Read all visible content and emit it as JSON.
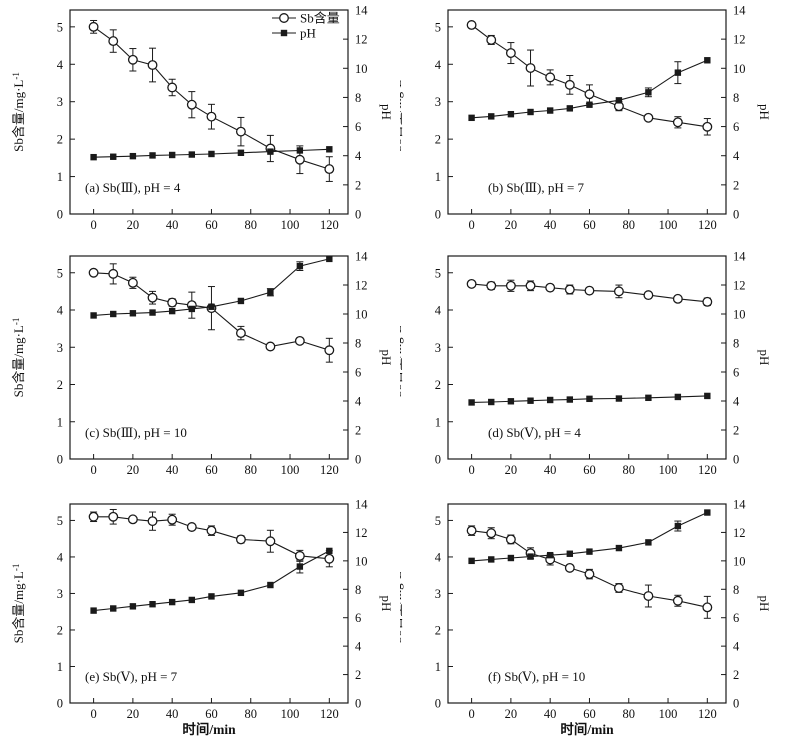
{
  "figure": {
    "background": "#ffffff",
    "line_color": "#1a1a1a",
    "legend": {
      "items": [
        {
          "label": "Sb含量",
          "marker": "open-circle-icon"
        },
        {
          "label": "pH",
          "marker": "filled-square-icon"
        }
      ]
    },
    "axes": {
      "x_label": "时间/min",
      "y_left_label": "Sb含量/mg·L",
      "y_left_label_superscript": "-1",
      "y_right_label": "pH",
      "x_ticks": [
        0,
        20,
        40,
        60,
        80,
        100,
        120
      ],
      "y_left_ticks": [
        0,
        1,
        2,
        3,
        4,
        5
      ],
      "y_right_ticks": [
        0,
        2,
        4,
        6,
        8,
        10,
        12,
        14
      ],
      "x_range": [
        -12,
        129
      ],
      "y_left_range": [
        0,
        5.45
      ],
      "y_right_range": [
        0,
        14
      ],
      "grid": false
    }
  },
  "chart_data": [
    {
      "id": "a",
      "type": "line",
      "caption": "(a) Sb(Ⅲ), pH = 4",
      "x": [
        0,
        10,
        20,
        30,
        40,
        50,
        60,
        75,
        90,
        105,
        120
      ],
      "show_legend": true,
      "show_x_title": false,
      "series": [
        {
          "name": "Sb含量",
          "axis": "left",
          "marker": "open-circle",
          "values": [
            5.0,
            4.62,
            4.12,
            3.98,
            3.38,
            2.92,
            2.6,
            2.2,
            1.75,
            1.45,
            1.2
          ],
          "errors": [
            0.17,
            0.3,
            0.3,
            0.45,
            0.22,
            0.35,
            0.33,
            0.38,
            0.35,
            0.37,
            0.33
          ]
        },
        {
          "name": "pH",
          "axis": "right",
          "marker": "filled-square",
          "values": [
            3.9,
            3.93,
            3.97,
            4.02,
            4.05,
            4.08,
            4.12,
            4.2,
            4.28,
            4.36,
            4.44
          ],
          "errors": [
            0,
            0,
            0,
            0,
            0,
            0,
            0,
            0,
            0,
            0,
            0
          ]
        }
      ]
    },
    {
      "id": "b",
      "type": "line",
      "caption": "(b) Sb(Ⅲ), pH = 7",
      "x": [
        0,
        10,
        20,
        30,
        40,
        50,
        60,
        75,
        90,
        105,
        120
      ],
      "show_legend": false,
      "show_x_title": false,
      "series": [
        {
          "name": "Sb含量",
          "axis": "left",
          "marker": "open-circle",
          "values": [
            5.05,
            4.65,
            4.3,
            3.9,
            3.65,
            3.45,
            3.2,
            2.88,
            2.57,
            2.45,
            2.33
          ],
          "errors": [
            0.05,
            0.12,
            0.28,
            0.48,
            0.2,
            0.25,
            0.25,
            0.12,
            0.06,
            0.15,
            0.22
          ]
        },
        {
          "name": "pH",
          "axis": "right",
          "marker": "filled-square",
          "values": [
            6.6,
            6.7,
            6.85,
            7.0,
            7.1,
            7.25,
            7.5,
            7.8,
            8.35,
            9.7,
            10.55
          ],
          "errors": [
            0,
            0,
            0,
            0,
            0,
            0,
            0,
            0,
            0.3,
            0.75,
            0
          ]
        }
      ]
    },
    {
      "id": "c",
      "type": "line",
      "caption": "(c) Sb(Ⅲ), pH = 10",
      "x": [
        0,
        10,
        20,
        30,
        40,
        50,
        60,
        75,
        90,
        105,
        120
      ],
      "show_legend": false,
      "show_x_title": false,
      "series": [
        {
          "name": "Sb含量",
          "axis": "left",
          "marker": "open-circle",
          "values": [
            5.0,
            4.97,
            4.73,
            4.33,
            4.2,
            4.13,
            4.05,
            3.38,
            3.02,
            3.17,
            2.92
          ],
          "errors": [
            0.08,
            0.27,
            0.15,
            0.17,
            0.1,
            0.35,
            0.58,
            0.18,
            0.08,
            0.05,
            0.32
          ]
        },
        {
          "name": "pH",
          "axis": "right",
          "marker": "filled-square",
          "values": [
            9.9,
            10.0,
            10.05,
            10.1,
            10.2,
            10.35,
            10.5,
            10.9,
            11.5,
            13.3,
            13.8
          ],
          "errors": [
            0,
            0,
            0,
            0,
            0,
            0,
            0,
            0,
            0.25,
            0.3,
            0
          ]
        }
      ]
    },
    {
      "id": "d",
      "type": "line",
      "caption": "(d) Sb(Ⅴ), pH = 4",
      "x": [
        0,
        10,
        20,
        30,
        40,
        50,
        60,
        75,
        90,
        105,
        120
      ],
      "show_legend": false,
      "show_x_title": false,
      "series": [
        {
          "name": "Sb含量",
          "axis": "left",
          "marker": "open-circle",
          "values": [
            4.7,
            4.65,
            4.65,
            4.65,
            4.6,
            4.55,
            4.52,
            4.5,
            4.4,
            4.3,
            4.22
          ],
          "errors": [
            0.07,
            0.1,
            0.15,
            0.13,
            0.05,
            0.12,
            0.05,
            0.17,
            0.04,
            0.04,
            0.1
          ]
        },
        {
          "name": "pH",
          "axis": "right",
          "marker": "filled-square",
          "values": [
            3.9,
            3.93,
            3.98,
            4.02,
            4.07,
            4.1,
            4.15,
            4.17,
            4.22,
            4.28,
            4.35
          ],
          "errors": [
            0,
            0,
            0,
            0,
            0,
            0,
            0,
            0,
            0,
            0,
            0
          ]
        }
      ]
    },
    {
      "id": "e",
      "type": "line",
      "caption": "(e) Sb(Ⅴ), pH = 7",
      "x": [
        0,
        10,
        20,
        30,
        40,
        50,
        60,
        75,
        90,
        105,
        120
      ],
      "show_legend": false,
      "show_x_title": true,
      "series": [
        {
          "name": "Sb含量",
          "axis": "left",
          "marker": "open-circle",
          "values": [
            5.1,
            5.1,
            5.03,
            4.98,
            5.02,
            4.82,
            4.72,
            4.48,
            4.43,
            4.03,
            3.95
          ],
          "errors": [
            0.13,
            0.2,
            0.07,
            0.25,
            0.15,
            0.07,
            0.13,
            0.1,
            0.3,
            0.15,
            0.22
          ]
        },
        {
          "name": "pH",
          "axis": "right",
          "marker": "filled-square",
          "values": [
            6.5,
            6.65,
            6.8,
            6.95,
            7.1,
            7.25,
            7.5,
            7.75,
            8.3,
            9.6,
            10.7
          ],
          "errors": [
            0,
            0,
            0,
            0,
            0,
            0,
            0,
            0,
            0,
            0.45,
            0
          ]
        }
      ]
    },
    {
      "id": "f",
      "type": "line",
      "caption": "(f) Sb(Ⅴ), pH = 10",
      "x": [
        0,
        10,
        20,
        30,
        40,
        50,
        60,
        75,
        90,
        105,
        120
      ],
      "show_legend": false,
      "show_x_title": true,
      "series": [
        {
          "name": "Sb含量",
          "axis": "left",
          "marker": "open-circle",
          "values": [
            4.72,
            4.65,
            4.48,
            4.1,
            3.93,
            3.7,
            3.53,
            3.15,
            2.93,
            2.8,
            2.62
          ],
          "errors": [
            0.13,
            0.15,
            0.12,
            0.15,
            0.15,
            0.06,
            0.13,
            0.12,
            0.3,
            0.15,
            0.3
          ]
        },
        {
          "name": "pH",
          "axis": "right",
          "marker": "filled-square",
          "values": [
            10.0,
            10.1,
            10.2,
            10.3,
            10.4,
            10.5,
            10.65,
            10.9,
            11.3,
            12.45,
            13.4
          ],
          "errors": [
            0,
            0,
            0,
            0,
            0,
            0,
            0,
            0,
            0,
            0.35,
            0
          ]
        }
      ]
    }
  ]
}
